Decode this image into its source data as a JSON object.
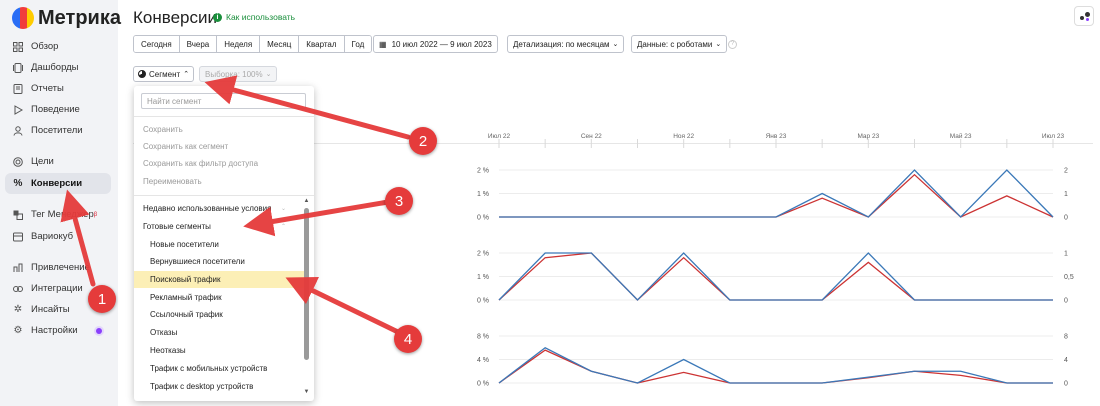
{
  "sidebar": {
    "logo_text": "Метрика",
    "items": [
      {
        "label": "Обзор",
        "icon": "grid-icon"
      },
      {
        "label": "Дашборды",
        "icon": "dashboard-icon"
      },
      {
        "label": "Отчеты",
        "icon": "reports-icon"
      },
      {
        "label": "Поведение",
        "icon": "play-icon"
      },
      {
        "label": "Посетители",
        "icon": "user-icon"
      },
      {
        "label": "Цели",
        "icon": "target-icon"
      },
      {
        "label": "Конверсии",
        "icon": "percent-icon"
      },
      {
        "label": "Тег Менеджер",
        "icon": "tag-icon"
      },
      {
        "label": "Вариокуб",
        "icon": "variocube-icon"
      },
      {
        "label": "Привлечение",
        "icon": "attraction-icon"
      },
      {
        "label": "Интеграции",
        "icon": "integration-icon"
      },
      {
        "label": "Инсайты",
        "icon": "insights-icon"
      },
      {
        "label": "Настройки",
        "icon": "gear-icon"
      }
    ],
    "active_item": "Конверсии"
  },
  "header": {
    "title": "Конверсии",
    "howto": "Как использовать"
  },
  "toolbar": {
    "periods": [
      "Сегодня",
      "Вчера",
      "Неделя",
      "Месяц",
      "Квартал",
      "Год"
    ],
    "date_range": "10 июл 2022 — 9 июл 2023",
    "detail": "Детализация: по месяцам",
    "data": "Данные: с роботами",
    "segment": "Сегмент",
    "sample": "Выборка: 100%"
  },
  "dropdown": {
    "search_placeholder": "Найти сегмент",
    "actions": [
      "Сохранить",
      "Сохранить как сегмент",
      "Сохранить как фильтр доступа",
      "Переименовать"
    ],
    "sections": [
      "Недавно использованные условия",
      "Готовые сегменты"
    ],
    "segments": [
      "Новые посетители",
      "Вернувшиеся посетители",
      "Поисковый трафик",
      "Рекламный трафик",
      "Ссылочный трафик",
      "Отказы",
      "Неотказы",
      "Трафик с мобильных устройств",
      "Трафик с desktop устройств"
    ],
    "highlighted": "Поисковый трафик"
  },
  "chart_data": [
    {
      "type": "line",
      "x": [
        "Июл 22",
        "Авг 22",
        "Сен 22",
        "Окт 22",
        "Ноя 22",
        "Дек 22",
        "Янв 23",
        "Фев 23",
        "Мар 23",
        "Апр 23",
        "Май 23",
        "Июн 23",
        "Июл 23"
      ],
      "x_tick_labels": [
        "Июл 22",
        "Сен 22",
        "Ноя 22",
        "Янв 23",
        "Мар 23",
        "Май 23",
        "Июл 23"
      ],
      "y_left_ticks": [
        "2 %",
        "1 %",
        "0 %"
      ],
      "y_right_ticks": [
        "2",
        "1",
        "0"
      ],
      "series": [
        {
          "color": "#3a78b8",
          "values": [
            0,
            0,
            0,
            0,
            0,
            0,
            0,
            1,
            0,
            2,
            0,
            2,
            0
          ]
        },
        {
          "color": "#cc3333",
          "values": [
            0,
            0,
            0,
            0,
            0,
            0,
            0,
            0.8,
            0,
            1.8,
            0,
            0.9,
            0
          ]
        }
      ],
      "ylim": [
        0,
        2
      ]
    },
    {
      "type": "line",
      "x": [
        "Июл 22",
        "Авг 22",
        "Сен 22",
        "Окт 22",
        "Ноя 22",
        "Дек 22",
        "Янв 23",
        "Фев 23",
        "Мар 23",
        "Апр 23",
        "Май 23",
        "Июн 23",
        "Июл 23"
      ],
      "y_left_ticks": [
        "2 %",
        "1 %",
        "0 %"
      ],
      "y_right_ticks": [
        "1",
        "0,5",
        "0"
      ],
      "series": [
        {
          "color": "#3a78b8",
          "values": [
            0,
            1,
            1,
            0,
            1,
            0,
            0,
            0,
            1,
            0,
            0,
            0,
            0
          ]
        },
        {
          "color": "#cc3333",
          "values": [
            0,
            0.9,
            1,
            0,
            0.9,
            0,
            0,
            0,
            0.8,
            0,
            0,
            0,
            0
          ]
        }
      ],
      "ylim": [
        0,
        1
      ]
    },
    {
      "type": "line",
      "x": [
        "Июл 22",
        "Авг 22",
        "Сен 22",
        "Окт 22",
        "Ноя 22",
        "Дек 22",
        "Янв 23",
        "Фев 23",
        "Мар 23",
        "Апр 23",
        "Май 23",
        "Июн 23",
        "Июл 23"
      ],
      "y_left_ticks": [
        "8 %",
        "4 %",
        "0 %"
      ],
      "y_right_ticks": [
        "8",
        "4",
        "0"
      ],
      "series": [
        {
          "color": "#3a78b8",
          "values": [
            0,
            6,
            2,
            0,
            4,
            0,
            0,
            0,
            1,
            2,
            2,
            0,
            0
          ]
        },
        {
          "color": "#cc3333",
          "values": [
            0,
            5.6,
            2,
            0,
            1.8,
            0,
            0,
            0,
            0.9,
            2,
            1.3,
            0,
            0
          ]
        }
      ],
      "ylim": [
        0,
        8
      ]
    }
  ],
  "annotations": {
    "badges": [
      "1",
      "2",
      "3",
      "4"
    ],
    "color": "#e53b3b"
  }
}
